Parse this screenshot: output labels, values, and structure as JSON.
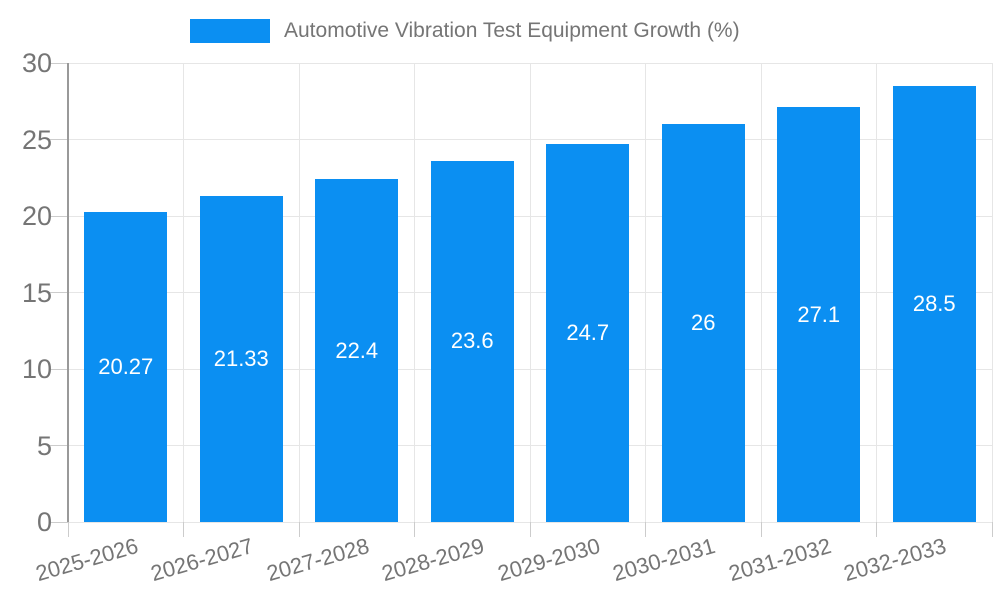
{
  "chart_data": {
    "type": "bar",
    "title": "Automotive Vibration Test Equipment Growth (%)",
    "legend_position": "top",
    "categories": [
      "2025-2026",
      "2026-2027",
      "2027-2028",
      "2028-2029",
      "2029-2030",
      "2030-2031",
      "2031-2032",
      "2032-2033"
    ],
    "values": [
      20.27,
      21.33,
      22.4,
      23.6,
      24.7,
      26,
      27.1,
      28.5
    ],
    "value_labels": [
      "20.27",
      "21.33",
      "22.4",
      "23.6",
      "24.7",
      "26",
      "27.1",
      "28.5"
    ],
    "xlabel": "",
    "ylabel": "",
    "ylim": [
      0,
      30
    ],
    "yticks": [
      0,
      5,
      10,
      15,
      20,
      25,
      30
    ],
    "grid": true,
    "x_tick_rotation_deg": -16,
    "colors": {
      "bar": "#0b8ff2",
      "value_label": "#ffffff",
      "axis_text": "#757575",
      "legend_text": "#757575",
      "gridline": "#e6e6e6",
      "tick": "#cccccc",
      "axis_line": "#999999",
      "background": "#ffffff"
    }
  }
}
